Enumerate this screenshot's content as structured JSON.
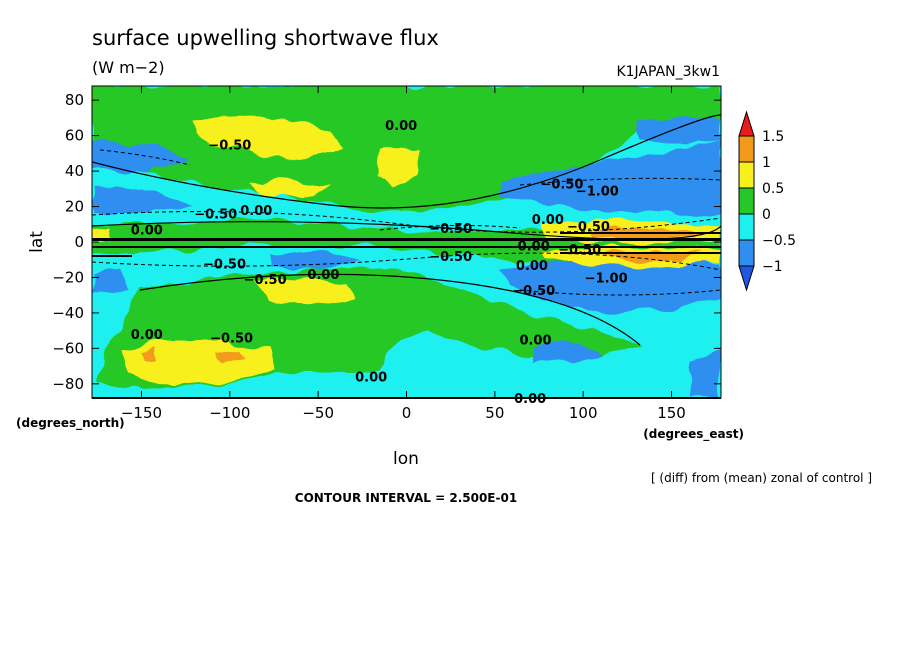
{
  "chart_data": {
    "type": "heatmap",
    "title": "surface upwelling shortwave flux",
    "units": "(W m−2)",
    "run_label": "K1JAPAN_3kw1",
    "xlabel": "lon",
    "ylabel": "lat",
    "x_units": "(degrees_east)",
    "y_units": "(degrees_north)",
    "x_ticks": [
      "−150",
      "−100",
      "−50",
      "0",
      "50",
      "100",
      "150"
    ],
    "x_tick_values": [
      -150,
      -100,
      -50,
      0,
      50,
      100,
      150
    ],
    "y_ticks": [
      "80",
      "60",
      "40",
      "20",
      "0",
      "−20",
      "−40",
      "−60",
      "−80"
    ],
    "y_tick_values": [
      80,
      60,
      40,
      20,
      0,
      -20,
      -40,
      -60,
      -80
    ],
    "xlim": [
      -178,
      178
    ],
    "ylim": [
      -88,
      88
    ],
    "caption": "[ (diff) from (mean) zonal of control ]",
    "contour_interval": "CONTOUR INTERVAL = 2.500E-01",
    "colorbar": {
      "labels": [
        "1.5",
        "1",
        "0.5",
        "0",
        "−0.5",
        "−1"
      ],
      "levels": [
        1.5,
        1,
        0.5,
        0,
        -0.5,
        -1
      ],
      "colors": [
        "#e81c1c",
        "#f29b1a",
        "#f7f01c",
        "#26c827",
        "#1ef0f0",
        "#2f8ff0",
        "#1f57e0"
      ]
    },
    "contour_labels": [
      {
        "text": "0.00",
        "lon": -3,
        "lat": 66
      },
      {
        "text": "−0.50",
        "lon": -100,
        "lat": 55
      },
      {
        "text": "−0.50",
        "lon": 88,
        "lat": 33
      },
      {
        "text": "−1.00",
        "lon": 108,
        "lat": 29
      },
      {
        "text": "−0.50",
        "lon": -108,
        "lat": 16
      },
      {
        "text": "0.00",
        "lon": -85,
        "lat": 18
      },
      {
        "text": "0.00",
        "lon": -147,
        "lat": 7
      },
      {
        "text": "−0.50",
        "lon": 25,
        "lat": 8
      },
      {
        "text": "0.00",
        "lon": 80,
        "lat": 13
      },
      {
        "text": "−0.50",
        "lon": 103,
        "lat": 9
      },
      {
        "text": "−0.50",
        "lon": 25,
        "lat": -8
      },
      {
        "text": "0.00",
        "lon": 72,
        "lat": -2
      },
      {
        "text": "−0.50",
        "lon": 98,
        "lat": -4
      },
      {
        "text": "−0.50",
        "lon": -103,
        "lat": -12
      },
      {
        "text": "0.00",
        "lon": -47,
        "lat": -18
      },
      {
        "text": "0.00",
        "lon": 71,
        "lat": -13
      },
      {
        "text": "−0.50",
        "lon": -80,
        "lat": -21
      },
      {
        "text": "−1.00",
        "lon": 113,
        "lat": -20
      },
      {
        "text": "−0.50",
        "lon": 72,
        "lat": -27
      },
      {
        "text": "0.00",
        "lon": -147,
        "lat": -52
      },
      {
        "text": "−0.50",
        "lon": -99,
        "lat": -54
      },
      {
        "text": "0.00",
        "lon": 73,
        "lat": -55
      },
      {
        "text": "0.00",
        "lon": -20,
        "lat": -76
      },
      {
        "text": "0.00",
        "lon": 70,
        "lat": -88
      }
    ]
  }
}
